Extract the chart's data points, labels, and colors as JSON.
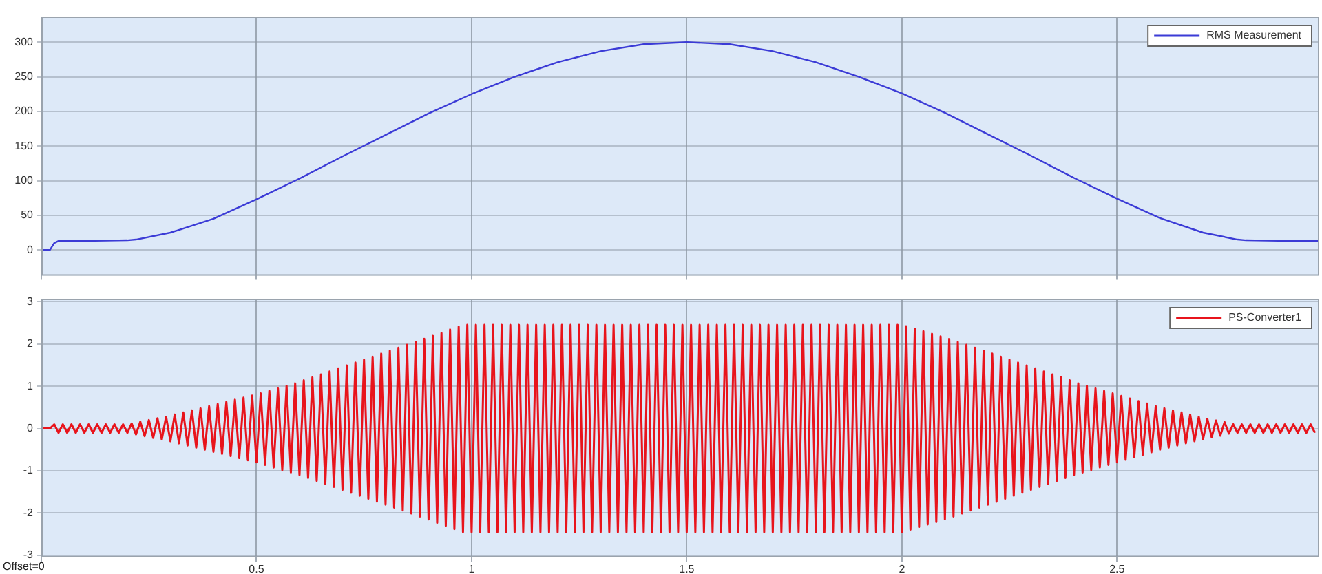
{
  "chart_data": [
    {
      "type": "line",
      "xlim": [
        0,
        2.97
      ],
      "xticks": [
        0,
        0.5,
        1,
        1.5,
        2,
        2.5
      ],
      "ylim": [
        -37,
        337
      ],
      "yticks": [
        0,
        50,
        100,
        150,
        200,
        250,
        300
      ],
      "grid": true,
      "legend": "top right",
      "tick_labels": "y",
      "series": [
        {
          "name": "RMS Measurement",
          "color": "#3b3bd6",
          "x": [
            0,
            0.02,
            0.03,
            0.04,
            0.1,
            0.2,
            0.22,
            0.3,
            0.4,
            0.5,
            0.6,
            0.7,
            0.8,
            0.9,
            1.0,
            1.1,
            1.2,
            1.3,
            1.4,
            1.5,
            1.6,
            1.7,
            1.8,
            1.9,
            2.0,
            2.1,
            2.2,
            2.3,
            2.4,
            2.5,
            2.6,
            2.7,
            2.78,
            2.8,
            2.9,
            2.97
          ],
          "values": [
            0,
            0,
            10,
            13,
            13,
            14,
            15,
            25,
            45,
            73,
            103,
            135,
            166,
            197,
            225,
            250,
            271,
            287,
            297,
            300,
            297,
            287,
            271,
            250,
            226,
            198,
            167,
            136,
            104,
            74,
            46,
            25,
            15,
            14,
            13,
            13
          ]
        }
      ]
    },
    {
      "type": "line",
      "xlim": [
        0,
        2.97
      ],
      "xticks": [
        {
          "value": 0,
          "label": null
        },
        0.5,
        1,
        1.5,
        2,
        2.5
      ],
      "ylim": [
        -3.05,
        3.07
      ],
      "yticks": [
        -3,
        -2,
        -1,
        0,
        1,
        2,
        3
      ],
      "grid": true,
      "legend": "top right",
      "annotations": [
        "Offset=0"
      ],
      "series": [
        {
          "name": "PS-Converter1",
          "color": "#e8141c",
          "x": [
            0,
            0.01,
            0.02,
            0.03,
            0.04,
            0.05,
            0.06,
            0.07,
            0.08,
            0.09,
            0.1,
            0.11,
            0.12,
            0.13,
            0.14,
            0.15,
            0.16,
            0.17,
            0.18,
            0.19,
            0.2,
            0.21,
            0.22,
            0.23,
            0.24,
            0.25,
            0.26,
            0.27,
            0.28,
            0.29,
            0.3,
            0.31,
            0.32,
            0.33,
            0.34,
            0.35,
            0.36,
            0.37,
            0.38,
            0.39,
            0.4,
            0.41,
            0.42,
            0.43,
            0.44,
            0.45,
            0.46,
            0.47,
            0.48,
            0.49,
            0.5,
            0.51,
            0.52,
            0.53,
            0.54,
            0.55,
            0.56,
            0.57,
            0.58,
            0.59,
            0.6,
            0.61,
            0.62,
            0.63,
            0.64,
            0.65,
            0.66,
            0.67,
            0.68,
            0.69,
            0.7,
            0.71,
            0.72,
            0.73,
            0.74,
            0.75,
            0.76,
            0.77,
            0.78,
            0.79,
            0.8,
            0.81,
            0.82,
            0.83,
            0.84,
            0.85,
            0.86,
            0.87,
            0.88,
            0.89,
            0.9,
            0.91,
            0.92,
            0.93,
            0.94,
            0.95,
            0.96,
            0.97,
            0.98,
            0.99,
            1.0,
            1.01,
            1.02,
            1.03,
            1.04,
            1.05,
            1.06,
            1.07,
            1.08,
            1.09,
            1.1,
            1.11,
            1.12,
            1.13,
            1.14,
            1.15,
            1.16,
            1.17,
            1.18,
            1.19,
            1.2,
            1.21,
            1.22,
            1.23,
            1.24,
            1.25,
            1.26,
            1.27,
            1.28,
            1.29,
            1.3,
            1.31,
            1.32,
            1.33,
            1.34,
            1.35,
            1.36,
            1.37,
            1.38,
            1.39,
            1.4,
            1.41,
            1.42,
            1.43,
            1.44,
            1.45,
            1.46,
            1.47,
            1.48,
            1.49,
            1.5,
            1.51,
            1.52,
            1.53,
            1.54,
            1.55,
            1.56,
            1.57,
            1.58,
            1.59,
            1.6,
            1.61,
            1.62,
            1.63,
            1.64,
            1.65,
            1.66,
            1.67,
            1.68,
            1.69,
            1.7,
            1.71,
            1.72,
            1.73,
            1.74,
            1.75,
            1.76,
            1.77,
            1.78,
            1.79,
            1.8,
            1.81,
            1.82,
            1.83,
            1.84,
            1.85,
            1.86,
            1.87,
            1.88,
            1.89,
            1.9,
            1.91,
            1.92,
            1.93,
            1.94,
            1.95,
            1.96,
            1.97,
            1.98,
            1.99,
            2.0,
            2.01,
            2.02,
            2.03,
            2.04,
            2.05,
            2.06,
            2.07,
            2.08,
            2.09,
            2.1,
            2.11,
            2.12,
            2.13,
            2.14,
            2.15,
            2.16,
            2.17,
            2.18,
            2.19,
            2.2,
            2.21,
            2.22,
            2.23,
            2.24,
            2.25,
            2.26,
            2.27,
            2.28,
            2.29,
            2.3,
            2.31,
            2.32,
            2.33,
            2.34,
            2.35,
            2.36,
            2.37,
            2.38,
            2.39,
            2.4,
            2.41,
            2.42,
            2.43,
            2.44,
            2.45,
            2.46,
            2.47,
            2.48,
            2.49,
            2.5,
            2.51,
            2.52,
            2.53,
            2.54,
            2.55,
            2.56,
            2.57,
            2.58,
            2.59,
            2.6,
            2.61,
            2.62,
            2.63,
            2.64,
            2.65,
            2.66,
            2.67,
            2.68,
            2.69,
            2.7,
            2.71,
            2.72,
            2.73,
            2.74,
            2.75,
            2.76,
            2.77,
            2.78,
            2.79,
            2.8,
            2.81,
            2.82,
            2.83,
            2.84,
            2.85,
            2.86,
            2.87,
            2.88,
            2.89,
            2.9,
            2.91,
            2.92,
            2.93,
            2.94,
            2.95,
            2.96
          ],
          "values": [
            0,
            0,
            0,
            0.1,
            -0.1,
            0.1,
            -0.1,
            0.1,
            -0.1,
            0.1,
            -0.1,
            0.1,
            -0.1,
            0.1,
            -0.1,
            0.1,
            -0.1,
            0.1,
            -0.1,
            0.1,
            -0.1,
            0.12,
            -0.14,
            0.16,
            -0.18,
            0.2,
            -0.22,
            0.24,
            -0.26,
            0.28,
            -0.3,
            0.33,
            -0.35,
            0.38,
            -0.4,
            0.43,
            -0.45,
            0.48,
            -0.5,
            0.53,
            -0.55,
            0.58,
            -0.6,
            0.63,
            -0.65,
            0.68,
            -0.7,
            0.73,
            -0.75,
            0.78,
            -0.8,
            0.83,
            -0.86,
            0.89,
            -0.92,
            0.95,
            -0.98,
            1.01,
            -1.04,
            1.07,
            -1.1,
            1.14,
            -1.17,
            1.21,
            -1.24,
            1.28,
            -1.31,
            1.35,
            -1.38,
            1.42,
            -1.45,
            1.49,
            -1.52,
            1.56,
            -1.59,
            1.63,
            -1.66,
            1.7,
            -1.73,
            1.77,
            -1.8,
            1.84,
            -1.87,
            1.91,
            -1.94,
            1.98,
            -2.01,
            2.05,
            -2.08,
            2.12,
            -2.15,
            2.19,
            -2.23,
            2.26,
            -2.3,
            2.34,
            -2.38,
            2.41,
            -2.45,
            2.45,
            -2.45,
            2.45,
            -2.45,
            2.45,
            -2.45,
            2.45,
            -2.45,
            2.45,
            -2.45,
            2.45,
            -2.45,
            2.45,
            -2.45,
            2.45,
            -2.45,
            2.45,
            -2.45,
            2.45,
            -2.45,
            2.45,
            -2.45,
            2.45,
            -2.45,
            2.45,
            -2.45,
            2.45,
            -2.45,
            2.45,
            -2.45,
            2.45,
            -2.45,
            2.45,
            -2.45,
            2.45,
            -2.45,
            2.45,
            -2.45,
            2.45,
            -2.45,
            2.45,
            -2.45,
            2.45,
            -2.45,
            2.45,
            -2.45,
            2.45,
            -2.45,
            2.45,
            -2.45,
            2.45,
            -2.45,
            2.45,
            -2.45,
            2.45,
            -2.45,
            2.45,
            -2.45,
            2.45,
            -2.45,
            2.45,
            -2.45,
            2.45,
            -2.45,
            2.45,
            -2.45,
            2.45,
            -2.45,
            2.45,
            -2.45,
            2.45,
            -2.45,
            2.45,
            -2.45,
            2.45,
            -2.45,
            2.45,
            -2.45,
            2.45,
            -2.45,
            2.45,
            -2.45,
            2.45,
            -2.45,
            2.45,
            -2.45,
            2.45,
            -2.45,
            2.45,
            -2.45,
            2.45,
            -2.45,
            2.45,
            -2.45,
            2.45,
            -2.45,
            2.45,
            -2.45,
            2.45,
            -2.45,
            2.45,
            -2.45,
            2.42,
            -2.39,
            2.36,
            -2.33,
            2.3,
            -2.27,
            2.24,
            -2.21,
            2.18,
            -2.15,
            2.12,
            -2.08,
            2.05,
            -2.01,
            1.98,
            -1.94,
            1.91,
            -1.87,
            1.84,
            -1.8,
            1.77,
            -1.73,
            1.7,
            -1.66,
            1.63,
            -1.59,
            1.56,
            -1.52,
            1.49,
            -1.45,
            1.42,
            -1.38,
            1.35,
            -1.31,
            1.28,
            -1.24,
            1.21,
            -1.17,
            1.14,
            -1.1,
            1.07,
            -1.04,
            1.01,
            -0.98,
            0.95,
            -0.92,
            0.89,
            -0.86,
            0.83,
            -0.8,
            0.77,
            -0.74,
            0.71,
            -0.68,
            0.65,
            -0.62,
            0.59,
            -0.56,
            0.53,
            -0.5,
            0.48,
            -0.45,
            0.43,
            -0.4,
            0.38,
            -0.35,
            0.33,
            -0.3,
            0.28,
            -0.25,
            0.23,
            -0.21,
            0.19,
            -0.17,
            0.15,
            -0.12,
            0.1,
            -0.1,
            0.1,
            -0.1,
            0.1,
            -0.1,
            0.1,
            -0.1,
            0.1,
            -0.1,
            0.1,
            -0.1,
            0.1,
            -0.1,
            0.1,
            -0.1,
            0.1,
            -0.1,
            0.1,
            -0.1
          ]
        }
      ]
    }
  ]
}
